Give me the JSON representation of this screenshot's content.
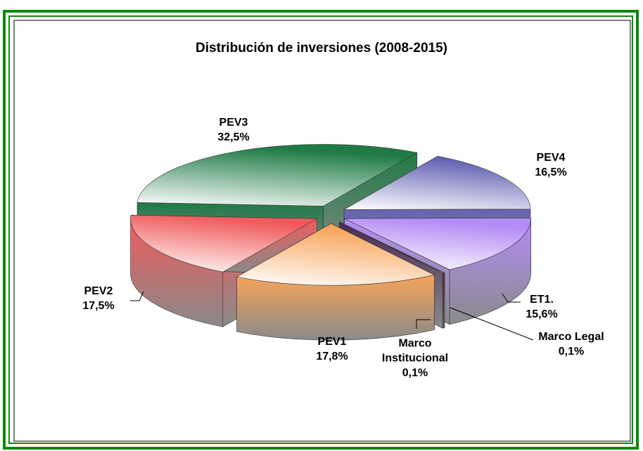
{
  "chart_data": {
    "type": "pie3d",
    "title": "Distribución de inversiones (2008-2015)",
    "categories": [
      "PEV3",
      "PEV4",
      "ET1.",
      "Marco Legal",
      "Marco Institucional",
      "PEV1",
      "PEV2"
    ],
    "values": [
      32.5,
      16.5,
      15.6,
      0.1,
      0.1,
      17.8,
      17.5
    ],
    "value_labels": [
      "32,5%",
      "16,5%",
      "15,6%",
      "0,1%",
      "0,1%",
      "17,8%",
      "17,5%"
    ],
    "colors": [
      "#1f7a45",
      "#6464b4",
      "#b48cf5",
      "#6a2a44",
      "#4a2a55",
      "#f7a45a",
      "#f05a5a"
    ]
  }
}
